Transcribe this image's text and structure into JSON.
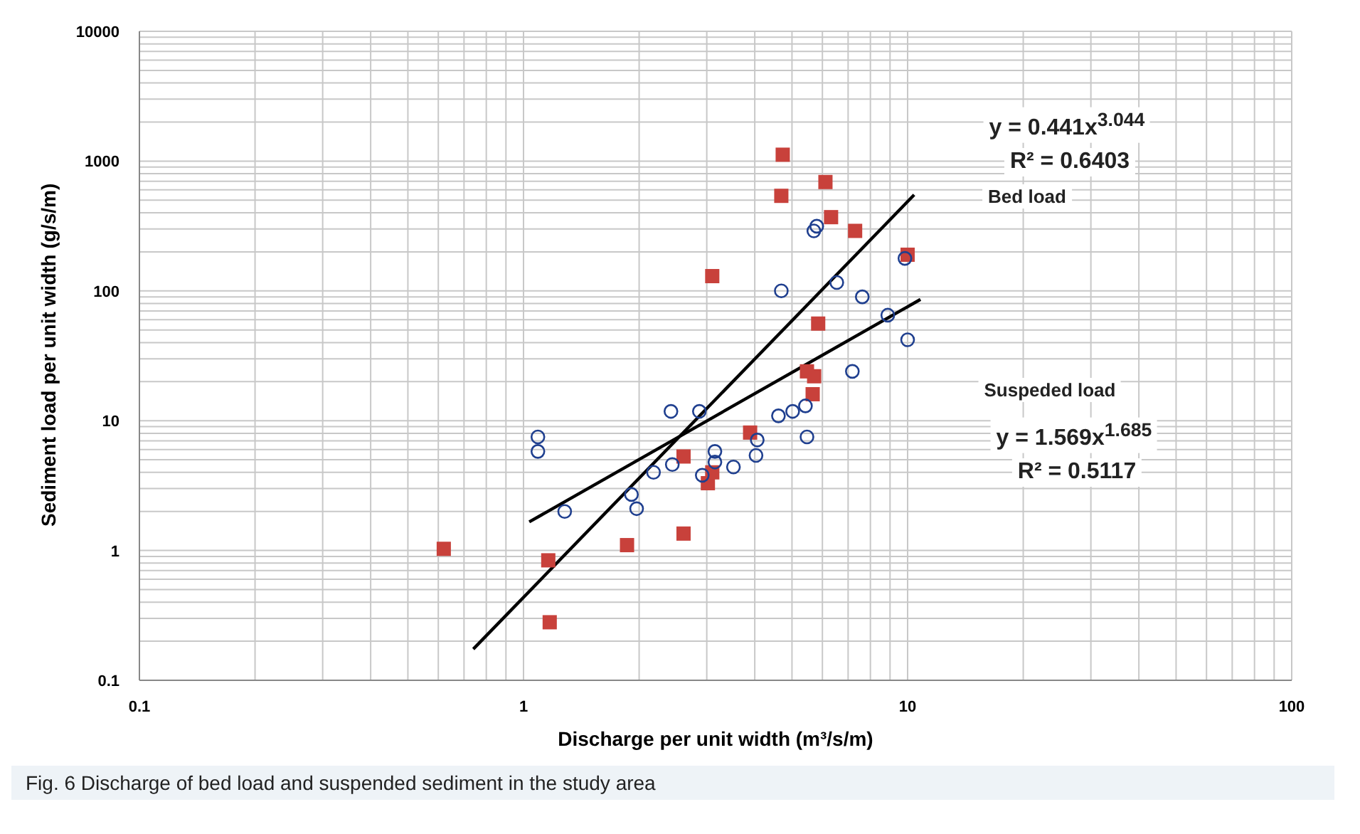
{
  "chart_data": {
    "type": "scatter",
    "xlabel": "Discharge per unit width (m³/s/m)",
    "ylabel": "Sediment load per unit width (g/s/m)",
    "log": "xy",
    "grid": true,
    "xlim": [
      0.1,
      100
    ],
    "xticks": [
      0.1,
      {
        "value": 0.2,
        "label": null
      },
      {
        "value": 0.3,
        "label": null
      },
      {
        "value": 0.4,
        "label": null
      },
      {
        "value": 0.5,
        "label": null
      },
      {
        "value": 0.6,
        "label": null
      },
      {
        "value": 0.7,
        "label": null
      },
      {
        "value": 0.8,
        "label": null
      },
      {
        "value": 0.9,
        "label": null
      },
      1,
      {
        "value": 2,
        "label": null
      },
      {
        "value": 3,
        "label": null
      },
      {
        "value": 4,
        "label": null
      },
      {
        "value": 5,
        "label": null
      },
      {
        "value": 6,
        "label": null
      },
      {
        "value": 7,
        "label": null
      },
      {
        "value": 8,
        "label": null
      },
      {
        "value": 9,
        "label": null
      },
      10,
      {
        "value": 20,
        "label": null
      },
      {
        "value": 30,
        "label": null
      },
      {
        "value": 40,
        "label": null
      },
      {
        "value": 50,
        "label": null
      },
      {
        "value": 60,
        "label": null
      },
      {
        "value": 70,
        "label": null
      },
      {
        "value": 80,
        "label": null
      },
      {
        "value": 90,
        "label": null
      },
      100
    ],
    "ylim": [
      0.1,
      10000
    ],
    "yticks": [
      0.1,
      {
        "value": 0.2,
        "label": null
      },
      {
        "value": 0.3,
        "label": null
      },
      {
        "value": 0.4,
        "label": null
      },
      {
        "value": 0.5,
        "label": null
      },
      {
        "value": 0.6,
        "label": null
      },
      {
        "value": 0.7,
        "label": null
      },
      {
        "value": 0.8,
        "label": null
      },
      {
        "value": 0.9,
        "label": null
      },
      1,
      {
        "value": 2,
        "label": null
      },
      {
        "value": 3,
        "label": null
      },
      {
        "value": 4,
        "label": null
      },
      {
        "value": 5,
        "label": null
      },
      {
        "value": 6,
        "label": null
      },
      {
        "value": 7,
        "label": null
      },
      {
        "value": 8,
        "label": null
      },
      {
        "value": 9,
        "label": null
      },
      10,
      {
        "value": 20,
        "label": null
      },
      {
        "value": 30,
        "label": null
      },
      {
        "value": 40,
        "label": null
      },
      {
        "value": 50,
        "label": null
      },
      {
        "value": 60,
        "label": null
      },
      {
        "value": 70,
        "label": null
      },
      {
        "value": 80,
        "label": null
      },
      {
        "value": 90,
        "label": null
      },
      100,
      {
        "value": 200,
        "label": null
      },
      {
        "value": 300,
        "label": null
      },
      {
        "value": 400,
        "label": null
      },
      {
        "value": 500,
        "label": null
      },
      {
        "value": 600,
        "label": null
      },
      {
        "value": 700,
        "label": null
      },
      {
        "value": 800,
        "label": null
      },
      {
        "value": 900,
        "label": null
      },
      1000,
      {
        "value": 2000,
        "label": null
      },
      {
        "value": 3000,
        "label": null
      },
      {
        "value": 4000,
        "label": null
      },
      {
        "value": 5000,
        "label": null
      },
      {
        "value": 6000,
        "label": null
      },
      {
        "value": 7000,
        "label": null
      },
      {
        "value": 8000,
        "label": null
      },
      {
        "value": 9000,
        "label": null
      },
      10000
    ],
    "series": [
      {
        "marker": "square",
        "color": "#c8413b",
        "x": [
          0.62,
          1.16,
          1.17,
          1.86,
          2.61,
          3.02,
          3.1,
          2.61,
          3.89,
          3.1,
          4.73,
          6.11,
          4.69,
          6.32,
          7.3,
          10,
          5.85,
          5.47,
          5.71,
          5.66
        ],
        "values": [
          1.03,
          0.84,
          0.28,
          1.1,
          1.35,
          3.3,
          4,
          5.3,
          8.1,
          130,
          1120,
          690,
          540,
          370,
          290,
          190,
          56,
          24,
          22,
          16
        ]
      },
      {
        "marker": "circle",
        "color": "#1f3f8f",
        "x": [
          1.09,
          1.09,
          1.28,
          1.91,
          1.97,
          2.18,
          2.44,
          2.42,
          2.87,
          2.92,
          3.15,
          3.15,
          3.52,
          4.03,
          4.06,
          4.61,
          5.02,
          5.42,
          5.47,
          4.69,
          5.7,
          5.8,
          9.84,
          6.54,
          7.62,
          8.88,
          10,
          7.18
        ],
        "values": [
          7.5,
          5.8,
          2,
          2.7,
          2.1,
          4,
          4.6,
          11.8,
          11.8,
          3.8,
          5.8,
          4.8,
          4.4,
          5.4,
          7.1,
          10.9,
          11.8,
          13,
          7.5,
          100,
          290,
          315,
          178,
          116,
          90,
          65,
          42,
          24
        ]
      },
      {
        "type": "line",
        "marker": "none",
        "color": "#000000",
        "x": [
          0.74,
          10.4
        ],
        "values": [
          0.174,
          550
        ]
      },
      {
        "type": "line",
        "marker": "none",
        "color": "#000000",
        "x": [
          1.035,
          10.8
        ],
        "values": [
          1.66,
          86
        ]
      }
    ],
    "annotations": [
      "y = 0.441x$^{3.044}$",
      "R² = 0.6403",
      "Bed load",
      "Suspeded load",
      "y = 1.569x$^{1.685}$",
      "R² = 0.5117",
      "Fig. 6  Discharge of bed load and suspended sediment in the study area"
    ]
  }
}
